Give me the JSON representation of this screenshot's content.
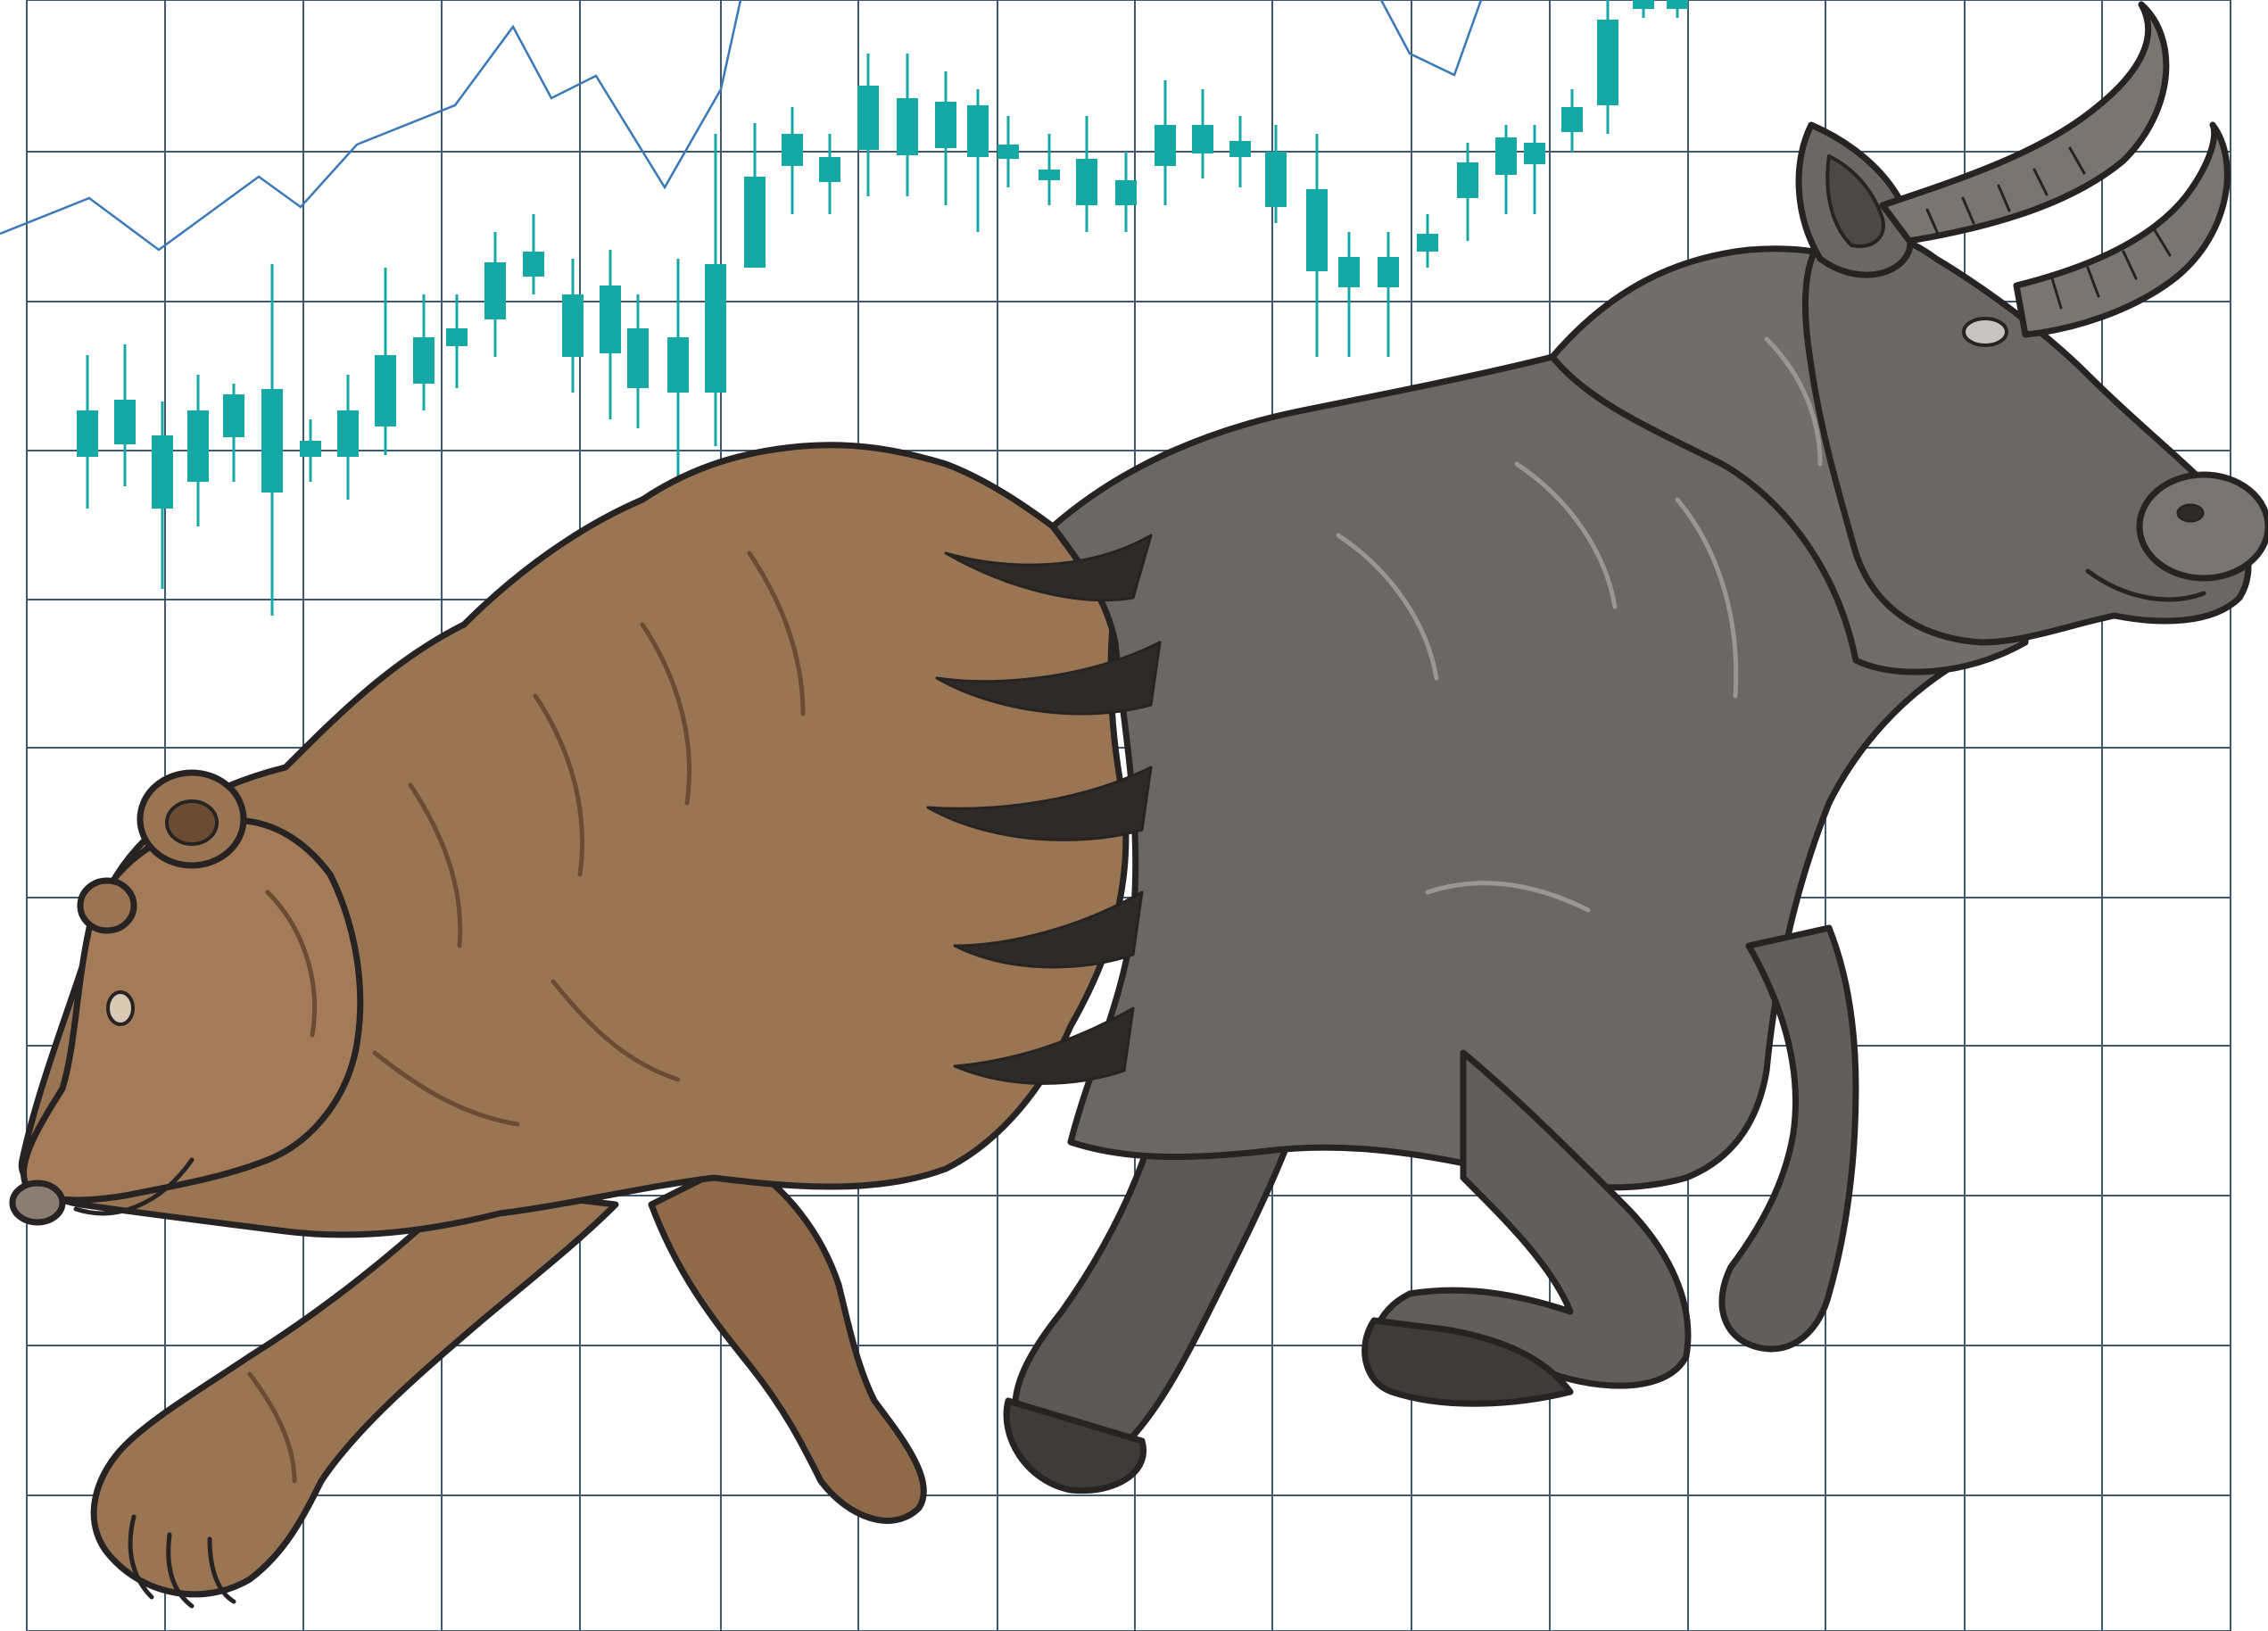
{
  "illustration": {
    "subject": "bull-and-bear-market-illustration",
    "colors": {
      "background": "#ffffff",
      "grid_line": "#1f3b57",
      "candle": "#16a8a4",
      "trend_line": "#3a78b8",
      "bear_fur": "#9a7554",
      "bear_fur_dark": "#6b4c33",
      "bull_body": "#6b6765",
      "bull_body_dark": "#4c4846",
      "horn": "#7a7570",
      "outline": "#262322"
    }
  }
}
